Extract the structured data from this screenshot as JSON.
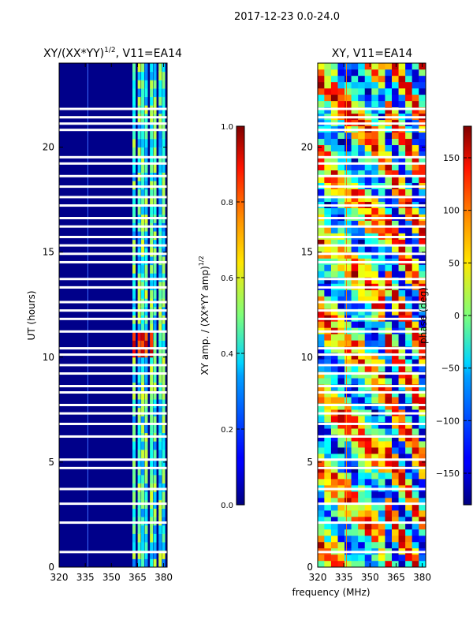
{
  "suptitle": "2017-12-23 0.0-24.0",
  "chart_data": [
    {
      "type": "heatmap",
      "title": "XY/(XX*YY)",
      "title_superscript": "1/2",
      "title_suffix": ", V11=EA14",
      "xlabel": "",
      "ylabel": "UT (hours)",
      "xlim": [
        320,
        382
      ],
      "ylim": [
        0,
        24
      ],
      "xticks": [
        320,
        335,
        350,
        365,
        380
      ],
      "yticks": [
        0,
        5,
        10,
        15,
        20
      ],
      "colorbar": {
        "label": "XY amp. / (XX*YY amp)",
        "label_superscript": "1/2",
        "range": [
          0.0,
          1.0
        ],
        "ticks": [
          "0.0",
          "0.2",
          "0.4",
          "0.6",
          "0.8",
          "1.0"
        ],
        "colormap": "jet"
      },
      "band_columns_mhz": [
        363,
        366,
        368,
        370,
        373,
        375,
        378,
        380
      ],
      "high_amp_hours": [
        10,
        11
      ],
      "flagged_hours": [
        0.7,
        2.1,
        3.0,
        3.7,
        4.7,
        5.1,
        6.2,
        6.8,
        7.3,
        7.7,
        8.3,
        8.6,
        9.2,
        9.6,
        10.1,
        10.4,
        11.2,
        11.8,
        12.2,
        12.6,
        13.3,
        13.7,
        14.5,
        14.9,
        15.3,
        15.7,
        16.2,
        16.6,
        17.2,
        17.6,
        18.1,
        18.6,
        19.2,
        19.5,
        20.8,
        21.1,
        21.4,
        21.8
      ]
    },
    {
      "type": "heatmap",
      "title": "XY, V11=EA14",
      "xlabel": "frequency (MHz)",
      "ylabel": "",
      "xlim": [
        320,
        382
      ],
      "ylim": [
        0,
        24
      ],
      "xticks": [
        320,
        335,
        350,
        365,
        380
      ],
      "yticks": [
        0,
        5,
        10,
        15,
        20
      ],
      "colorbar": {
        "label": "phase (deg)",
        "range": [
          -180,
          180
        ],
        "ticks": [
          "−150",
          "−100",
          "−50",
          "0",
          "50",
          "100",
          "150"
        ],
        "colormap": "jet"
      },
      "flagged_hours": [
        0.7,
        2.1,
        3.0,
        3.7,
        4.7,
        5.1,
        6.2,
        6.8,
        7.3,
        7.7,
        8.3,
        8.6,
        9.2,
        9.6,
        10.1,
        10.4,
        11.2,
        11.8,
        12.2,
        12.6,
        13.3,
        13.7,
        14.5,
        14.9,
        15.3,
        15.7,
        16.2,
        16.6,
        17.2,
        17.6,
        18.1,
        18.6,
        19.2,
        19.5,
        20.8,
        21.1,
        21.4,
        21.8
      ]
    }
  ]
}
